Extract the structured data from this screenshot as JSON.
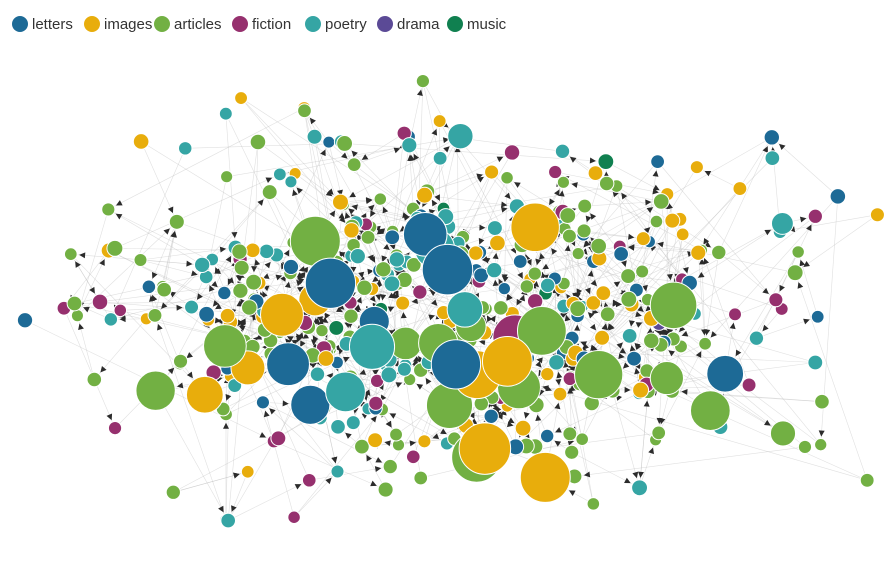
{
  "legend": [
    {
      "label": "letters",
      "color": "#1d6a96"
    },
    {
      "label": "images",
      "color": "#e8ad0c"
    },
    {
      "label": "articles",
      "color": "#72b043"
    },
    {
      "label": "fiction",
      "color": "#96306e"
    },
    {
      "label": "poetry",
      "color": "#35a5a4"
    },
    {
      "label": "drama",
      "color": "#5b4a96"
    },
    {
      "label": "music",
      "color": "#108050"
    }
  ]
}
